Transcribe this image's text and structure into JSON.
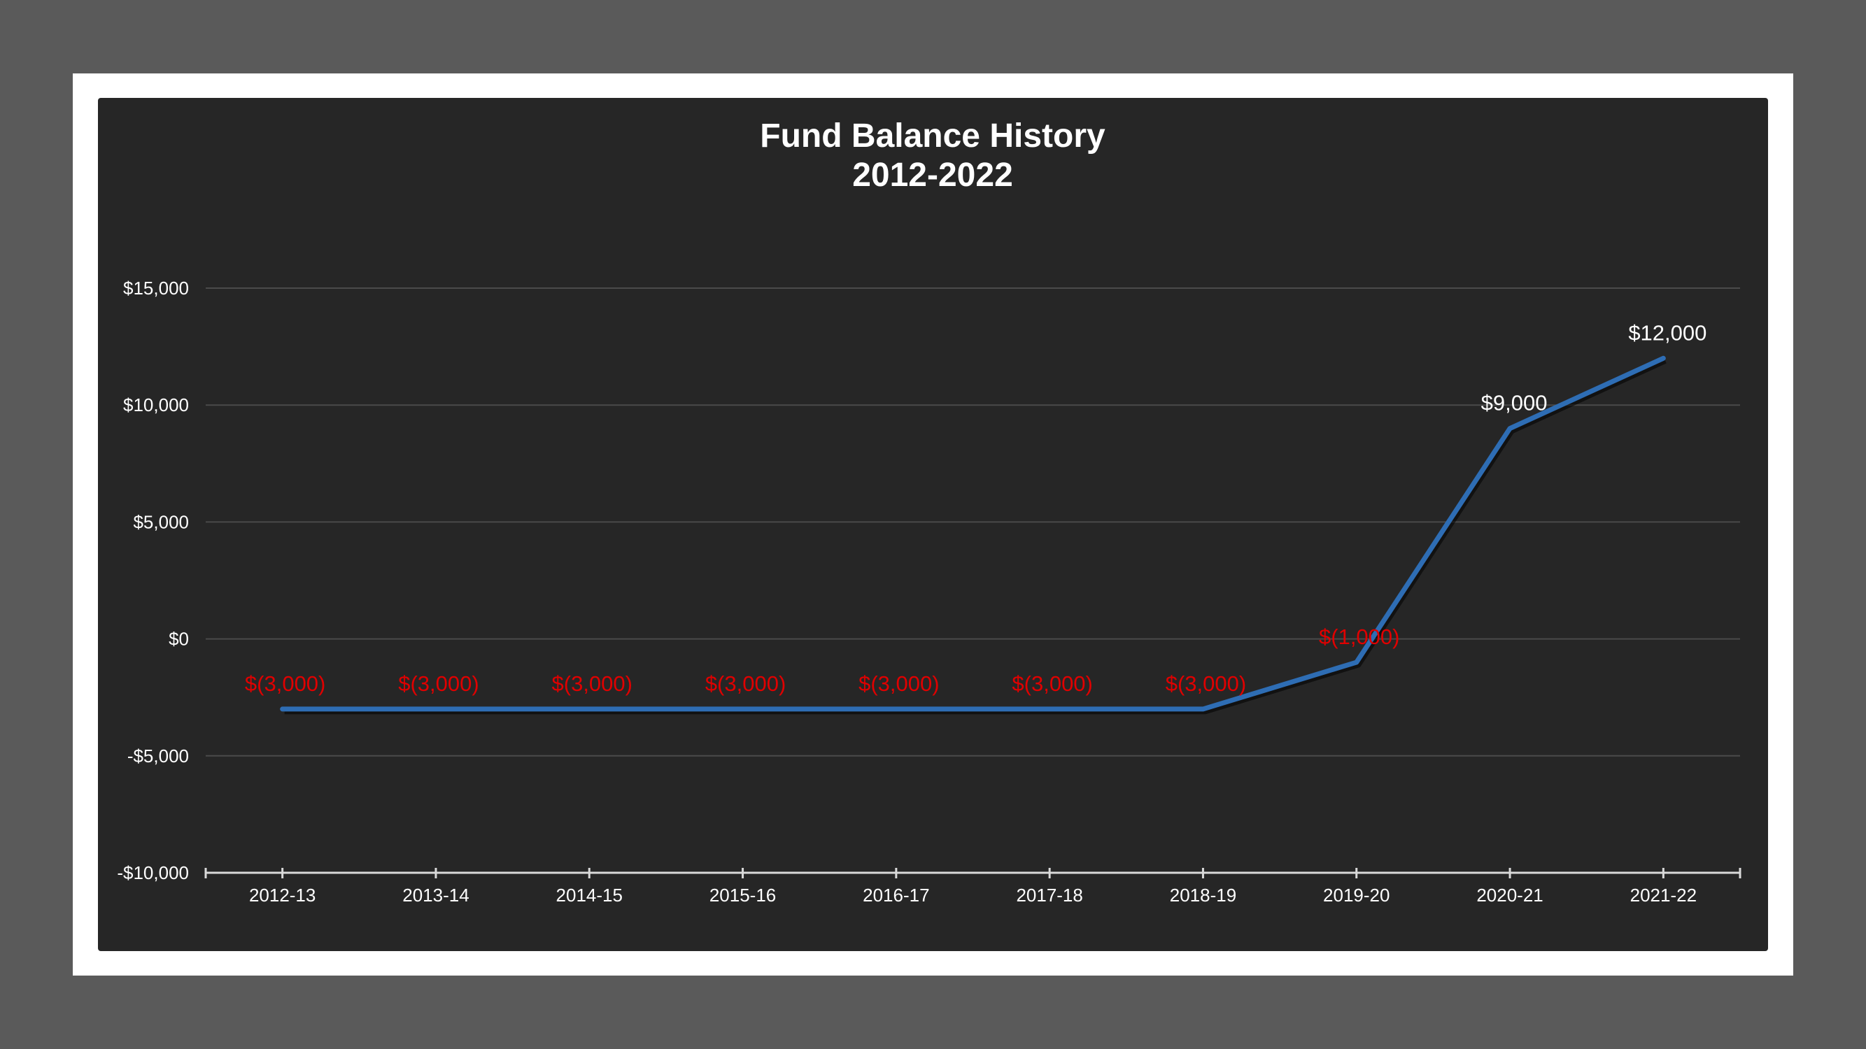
{
  "chart_data": {
    "type": "line",
    "title_lines": [
      "Fund Balance History",
      "2012-2022"
    ],
    "categories": [
      "2012-13",
      "2013-14",
      "2014-15",
      "2015-16",
      "2016-17",
      "2017-18",
      "2018-19",
      "2019-20",
      "2020-21",
      "2021-22"
    ],
    "series": [
      {
        "values": [
          -3000,
          -3000,
          -3000,
          -3000,
          -3000,
          -3000,
          -3000,
          -1000,
          9000,
          12000
        ],
        "color": "#2e6db4"
      }
    ],
    "data_labels": [
      "$(3,000)",
      "$(3,000)",
      "$(3,000)",
      "$(3,000)",
      "$(3,000)",
      "$(3,000)",
      "$(3,000)",
      "$(1,000)",
      "$9,000",
      "$12,000"
    ],
    "y_ticks": [
      15000,
      10000,
      5000,
      0,
      -5000,
      -10000
    ],
    "y_tick_labels": [
      "$15,000",
      "$10,000",
      "$5,000",
      "$0",
      "-$5,000",
      "-$10,000"
    ],
    "ylim": [
      -10000,
      15000
    ],
    "grid": true,
    "legend": false,
    "colors": {
      "background": "#262626",
      "frame": "#ffffff",
      "page": "#5a5a5a",
      "line": "#2e6db4",
      "grid": "#4a4a4a",
      "negative_label": "#e00000",
      "positive_label": "#ffffff",
      "text": "#ffffff"
    }
  }
}
